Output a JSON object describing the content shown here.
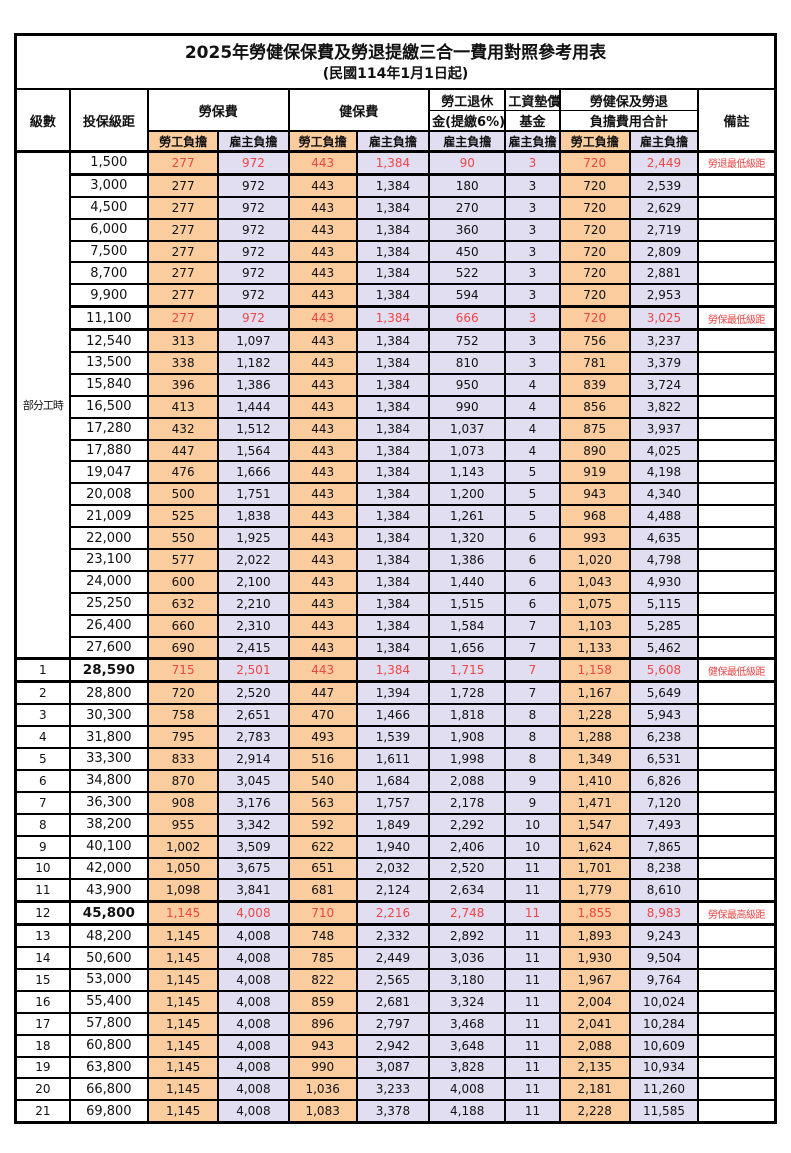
{
  "title": "2025年勞健保保費及勞退提繳三合一費用對照參考用表",
  "subtitle": "(民國114年1月1日起)",
  "colors": {
    "employee_column_bg": "#FACC9E",
    "employer_column_bg": "#E2DEF1",
    "highlight_text": "#EE4545",
    "grid": "#000000"
  },
  "table": {
    "header": {
      "level": "級數",
      "bracket": "投保級距",
      "labor_insurance": "勞保費",
      "health_insurance": "健保費",
      "pension_line1": "勞工退休",
      "pension_line2": "金(提繳6%)",
      "wage_fund_line1": "工資墊償",
      "wage_fund_line2": "基金",
      "total_line1": "勞健保及勞退",
      "total_line2": "負擔費用合計",
      "note": "備註",
      "employee": "勞工負擔",
      "employer": "雇主負擔"
    },
    "part_time_label": "部分工時",
    "part_time_row_span": 23,
    "value_columns": [
      "勞保費勞工負擔",
      "勞保費雇主負擔",
      "健保費勞工負擔",
      "健保費雇主負擔",
      "勞工退休金雇主負擔",
      "工資墊償基金雇主負擔",
      "合計勞工負擔",
      "合計雇主負擔"
    ],
    "rows": [
      {
        "bracket": "1,500",
        "values": [
          "277",
          "972",
          "443",
          "1,384",
          "90",
          "3",
          "720",
          "2,449"
        ],
        "red": true,
        "note": "勞退最低級距"
      },
      {
        "bracket": "3,000",
        "values": [
          "277",
          "972",
          "443",
          "1,384",
          "180",
          "3",
          "720",
          "2,539"
        ]
      },
      {
        "bracket": "4,500",
        "values": [
          "277",
          "972",
          "443",
          "1,384",
          "270",
          "3",
          "720",
          "2,629"
        ]
      },
      {
        "bracket": "6,000",
        "values": [
          "277",
          "972",
          "443",
          "1,384",
          "360",
          "3",
          "720",
          "2,719"
        ]
      },
      {
        "bracket": "7,500",
        "values": [
          "277",
          "972",
          "443",
          "1,384",
          "450",
          "3",
          "720",
          "2,809"
        ]
      },
      {
        "bracket": "8,700",
        "values": [
          "277",
          "972",
          "443",
          "1,384",
          "522",
          "3",
          "720",
          "2,881"
        ]
      },
      {
        "bracket": "9,900",
        "values": [
          "277",
          "972",
          "443",
          "1,384",
          "594",
          "3",
          "720",
          "2,953"
        ]
      },
      {
        "bracket": "11,100",
        "values": [
          "277",
          "972",
          "443",
          "1,384",
          "666",
          "3",
          "720",
          "3,025"
        ],
        "red": true,
        "note": "勞保最低級距"
      },
      {
        "bracket": "12,540",
        "values": [
          "313",
          "1,097",
          "443",
          "1,384",
          "752",
          "3",
          "756",
          "3,237"
        ]
      },
      {
        "bracket": "13,500",
        "values": [
          "338",
          "1,182",
          "443",
          "1,384",
          "810",
          "3",
          "781",
          "3,379"
        ]
      },
      {
        "bracket": "15,840",
        "values": [
          "396",
          "1,386",
          "443",
          "1,384",
          "950",
          "4",
          "839",
          "3,724"
        ]
      },
      {
        "bracket": "16,500",
        "values": [
          "413",
          "1,444",
          "443",
          "1,384",
          "990",
          "4",
          "856",
          "3,822"
        ]
      },
      {
        "bracket": "17,280",
        "values": [
          "432",
          "1,512",
          "443",
          "1,384",
          "1,037",
          "4",
          "875",
          "3,937"
        ]
      },
      {
        "bracket": "17,880",
        "values": [
          "447",
          "1,564",
          "443",
          "1,384",
          "1,073",
          "4",
          "890",
          "4,025"
        ]
      },
      {
        "bracket": "19,047",
        "values": [
          "476",
          "1,666",
          "443",
          "1,384",
          "1,143",
          "5",
          "919",
          "4,198"
        ]
      },
      {
        "bracket": "20,008",
        "values": [
          "500",
          "1,751",
          "443",
          "1,384",
          "1,200",
          "5",
          "943",
          "4,340"
        ]
      },
      {
        "bracket": "21,009",
        "values": [
          "525",
          "1,838",
          "443",
          "1,384",
          "1,261",
          "5",
          "968",
          "4,488"
        ]
      },
      {
        "bracket": "22,000",
        "values": [
          "550",
          "1,925",
          "443",
          "1,384",
          "1,320",
          "6",
          "993",
          "4,635"
        ]
      },
      {
        "bracket": "23,100",
        "values": [
          "577",
          "2,022",
          "443",
          "1,384",
          "1,386",
          "6",
          "1,020",
          "4,798"
        ]
      },
      {
        "bracket": "24,000",
        "values": [
          "600",
          "2,100",
          "443",
          "1,384",
          "1,440",
          "6",
          "1,043",
          "4,930"
        ]
      },
      {
        "bracket": "25,250",
        "values": [
          "632",
          "2,210",
          "443",
          "1,384",
          "1,515",
          "6",
          "1,075",
          "5,115"
        ]
      },
      {
        "bracket": "26,400",
        "values": [
          "660",
          "2,310",
          "443",
          "1,384",
          "1,584",
          "7",
          "1,103",
          "5,285"
        ]
      },
      {
        "bracket": "27,600",
        "values": [
          "690",
          "2,415",
          "443",
          "1,384",
          "1,656",
          "7",
          "1,133",
          "5,462"
        ]
      },
      {
        "level": "1",
        "bracket": "28,590",
        "values": [
          "715",
          "2,501",
          "443",
          "1,384",
          "1,715",
          "7",
          "1,158",
          "5,608"
        ],
        "red": true,
        "bold": true,
        "note": "健保最低級距"
      },
      {
        "level": "2",
        "bracket": "28,800",
        "values": [
          "720",
          "2,520",
          "447",
          "1,394",
          "1,728",
          "7",
          "1,167",
          "5,649"
        ]
      },
      {
        "level": "3",
        "bracket": "30,300",
        "values": [
          "758",
          "2,651",
          "470",
          "1,466",
          "1,818",
          "8",
          "1,228",
          "5,943"
        ]
      },
      {
        "level": "4",
        "bracket": "31,800",
        "values": [
          "795",
          "2,783",
          "493",
          "1,539",
          "1,908",
          "8",
          "1,288",
          "6,238"
        ]
      },
      {
        "level": "5",
        "bracket": "33,300",
        "values": [
          "833",
          "2,914",
          "516",
          "1,611",
          "1,998",
          "8",
          "1,349",
          "6,531"
        ]
      },
      {
        "level": "6",
        "bracket": "34,800",
        "values": [
          "870",
          "3,045",
          "540",
          "1,684",
          "2,088",
          "9",
          "1,410",
          "6,826"
        ]
      },
      {
        "level": "7",
        "bracket": "36,300",
        "values": [
          "908",
          "3,176",
          "563",
          "1,757",
          "2,178",
          "9",
          "1,471",
          "7,120"
        ]
      },
      {
        "level": "8",
        "bracket": "38,200",
        "values": [
          "955",
          "3,342",
          "592",
          "1,849",
          "2,292",
          "10",
          "1,547",
          "7,493"
        ]
      },
      {
        "level": "9",
        "bracket": "40,100",
        "values": [
          "1,002",
          "3,509",
          "622",
          "1,940",
          "2,406",
          "10",
          "1,624",
          "7,865"
        ]
      },
      {
        "level": "10",
        "bracket": "42,000",
        "values": [
          "1,050",
          "3,675",
          "651",
          "2,032",
          "2,520",
          "11",
          "1,701",
          "8,238"
        ]
      },
      {
        "level": "11",
        "bracket": "43,900",
        "values": [
          "1,098",
          "3,841",
          "681",
          "2,124",
          "2,634",
          "11",
          "1,779",
          "8,610"
        ]
      },
      {
        "level": "12",
        "bracket": "45,800",
        "values": [
          "1,145",
          "4,008",
          "710",
          "2,216",
          "2,748",
          "11",
          "1,855",
          "8,983"
        ],
        "red": true,
        "bold": true,
        "note": "勞保最高級距"
      },
      {
        "level": "13",
        "bracket": "48,200",
        "values": [
          "1,145",
          "4,008",
          "748",
          "2,332",
          "2,892",
          "11",
          "1,893",
          "9,243"
        ]
      },
      {
        "level": "14",
        "bracket": "50,600",
        "values": [
          "1,145",
          "4,008",
          "785",
          "2,449",
          "3,036",
          "11",
          "1,930",
          "9,504"
        ]
      },
      {
        "level": "15",
        "bracket": "53,000",
        "values": [
          "1,145",
          "4,008",
          "822",
          "2,565",
          "3,180",
          "11",
          "1,967",
          "9,764"
        ]
      },
      {
        "level": "16",
        "bracket": "55,400",
        "values": [
          "1,145",
          "4,008",
          "859",
          "2,681",
          "3,324",
          "11",
          "2,004",
          "10,024"
        ]
      },
      {
        "level": "17",
        "bracket": "57,800",
        "values": [
          "1,145",
          "4,008",
          "896",
          "2,797",
          "3,468",
          "11",
          "2,041",
          "10,284"
        ]
      },
      {
        "level": "18",
        "bracket": "60,800",
        "values": [
          "1,145",
          "4,008",
          "943",
          "2,942",
          "3,648",
          "11",
          "2,088",
          "10,609"
        ]
      },
      {
        "level": "19",
        "bracket": "63,800",
        "values": [
          "1,145",
          "4,008",
          "990",
          "3,087",
          "3,828",
          "11",
          "2,135",
          "10,934"
        ]
      },
      {
        "level": "20",
        "bracket": "66,800",
        "values": [
          "1,145",
          "4,008",
          "1,036",
          "3,233",
          "4,008",
          "11",
          "2,181",
          "11,260"
        ]
      },
      {
        "level": "21",
        "bracket": "69,800",
        "values": [
          "1,145",
          "4,008",
          "1,083",
          "3,378",
          "4,188",
          "11",
          "2,228",
          "11,585"
        ]
      }
    ]
  }
}
